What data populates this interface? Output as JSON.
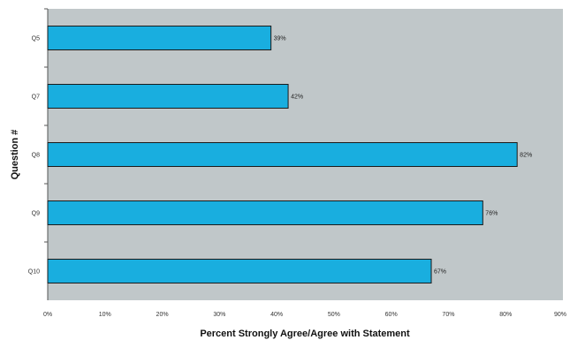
{
  "chart_data": {
    "type": "bar",
    "orientation": "horizontal",
    "categories": [
      "Q5",
      "Q7",
      "Q8",
      "Q9",
      "Q10"
    ],
    "values": [
      39,
      42,
      82,
      76,
      67
    ],
    "data_labels": [
      "39%",
      "42%",
      "82%",
      "76%",
      "67%"
    ],
    "xlabel": "Percent Strongly Agree/Agree with Statement",
    "ylabel": "Question #",
    "xlim": [
      0,
      90
    ],
    "xticks": [
      0,
      10,
      20,
      30,
      40,
      50,
      60,
      70,
      80,
      90
    ],
    "xtick_labels": [
      "0%",
      "10%",
      "20%",
      "30%",
      "40%",
      "50%",
      "60%",
      "70%",
      "80%",
      "90%"
    ],
    "grid": false,
    "legend": "none",
    "colors": {
      "bar_fill": "#19AEDF",
      "bar_stroke": "#1a1a1a",
      "plot_background": "#C0C7C9",
      "axis_line": "#555555"
    }
  }
}
